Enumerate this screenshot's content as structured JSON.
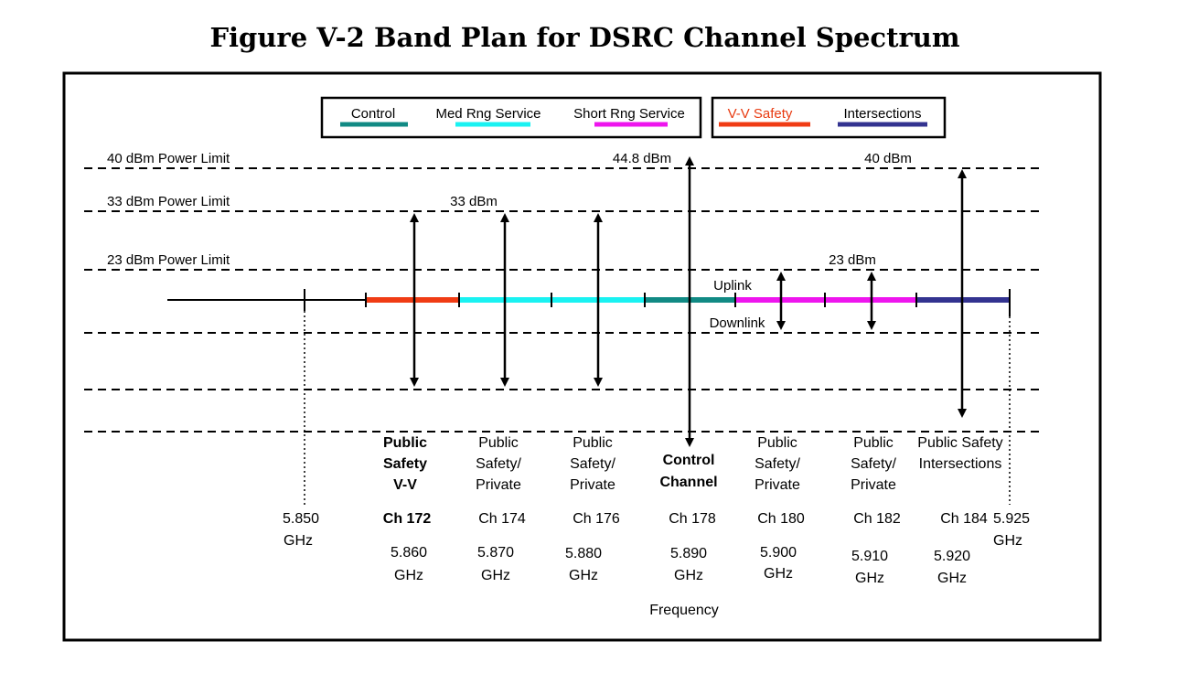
{
  "title": "Figure V-2 Band Plan for DSRC Channel Spectrum",
  "legend": {
    "group1": [
      {
        "label": "Control",
        "color": "#118a84"
      },
      {
        "label": "Med Rng Service",
        "color": "#19f2f2"
      },
      {
        "label": "Short Rng Service",
        "color": "#ee15ee"
      }
    ],
    "group2": [
      {
        "label": "V-V Safety",
        "color": "#f03c14",
        "label_color": "#e83a10"
      },
      {
        "label": "Intersections",
        "color": "#333390"
      }
    ]
  },
  "power_limits": [
    "40 dBm Power Limit",
    "33 dBm Power Limit",
    "23 dBm Power Limit"
  ],
  "power_values": {
    "control": "44.8 dBm",
    "intersections": "40 dBm",
    "med": "33 dBm",
    "short": "23 dBm"
  },
  "link_labels": {
    "uplink": "Uplink",
    "downlink": "Downlink"
  },
  "band_edges": {
    "start": [
      "5.850",
      "GHz"
    ],
    "end": [
      "5.925",
      "GHz"
    ]
  },
  "channels": [
    {
      "purpose": [
        "Public",
        "Safety",
        "V-V"
      ],
      "bold": true,
      "channel": "Ch 172",
      "freq": [
        "5.860",
        "GHz"
      ],
      "color": "#f03c14"
    },
    {
      "purpose": [
        "Public",
        "Safety/",
        "Private"
      ],
      "bold": false,
      "channel": "Ch 174",
      "freq": [
        "5.870",
        "GHz"
      ],
      "color": "#19f2f2"
    },
    {
      "purpose": [
        "Public",
        "Safety/",
        "Private"
      ],
      "bold": false,
      "channel": "Ch 176",
      "freq": [
        "5.880",
        "GHz"
      ],
      "color": "#19f2f2"
    },
    {
      "purpose": [
        "Control",
        "Channel"
      ],
      "bold": true,
      "channel": "Ch 178",
      "freq": [
        "5.890",
        "GHz"
      ],
      "color": "#118a84"
    },
    {
      "purpose": [
        "Public",
        "Safety/",
        "Private"
      ],
      "bold": false,
      "channel": "Ch 180",
      "freq": [
        "5.900",
        "GHz"
      ],
      "color": "#ee15ee"
    },
    {
      "purpose": [
        "Public",
        "Safety/",
        "Private"
      ],
      "bold": false,
      "channel": "Ch 182",
      "freq": [
        "5.910",
        "GHz"
      ],
      "color": "#ee15ee"
    },
    {
      "purpose": [
        "Public Safety",
        "Intersections"
      ],
      "bold": false,
      "channel": "Ch 184",
      "freq": [
        "5.920",
        "GHz"
      ],
      "color": "#333390"
    }
  ],
  "x_axis_label": "Frequency"
}
